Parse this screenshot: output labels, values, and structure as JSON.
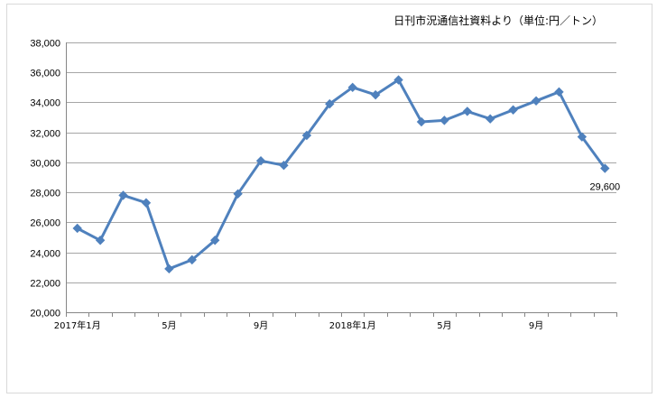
{
  "source_note": "日刊市況通信社資料より（単位:円／トン）",
  "chart_data": {
    "type": "line",
    "title": "",
    "xlabel": "",
    "ylabel": "",
    "ylim": [
      20000,
      38000
    ],
    "yticks": [
      20000,
      22000,
      24000,
      26000,
      28000,
      30000,
      32000,
      34000,
      36000,
      38000
    ],
    "ytick_labels": [
      "20,000",
      "22,000",
      "24,000",
      "26,000",
      "28,000",
      "30,000",
      "32,000",
      "34,000",
      "36,000",
      "38,000"
    ],
    "x": [
      "2017-01",
      "2017-02",
      "2017-03",
      "2017-04",
      "2017-05",
      "2017-06",
      "2017-07",
      "2017-08",
      "2017-09",
      "2017-10",
      "2017-11",
      "2017-12",
      "2018-01",
      "2018-02",
      "2018-03",
      "2018-04",
      "2018-05",
      "2018-06",
      "2018-07",
      "2018-08",
      "2018-09",
      "2018-10",
      "2018-11",
      "2018-12"
    ],
    "xtick_labels": [
      {
        "at": "2017-01",
        "text": "2017年1月"
      },
      {
        "at": "2017-05",
        "text": "5月"
      },
      {
        "at": "2017-09",
        "text": "9月"
      },
      {
        "at": "2018-01",
        "text": "2018年1月"
      },
      {
        "at": "2018-05",
        "text": "5月"
      },
      {
        "at": "2018-09",
        "text": "9月"
      }
    ],
    "series": [
      {
        "name": "",
        "color": "#4f81bd",
        "marker": "diamond",
        "values": [
          25600,
          24800,
          27800,
          27300,
          22900,
          23500,
          24800,
          27900,
          30100,
          29800,
          31800,
          33900,
          35000,
          34500,
          35500,
          32700,
          32800,
          33400,
          32900,
          33500,
          34100,
          34700,
          31700,
          29600
        ]
      }
    ],
    "data_labels": [
      {
        "at": "2018-12",
        "text": "29,600"
      }
    ],
    "grid": "horizontal",
    "gridline_color": "#a6a6a6",
    "legend": "none"
  }
}
